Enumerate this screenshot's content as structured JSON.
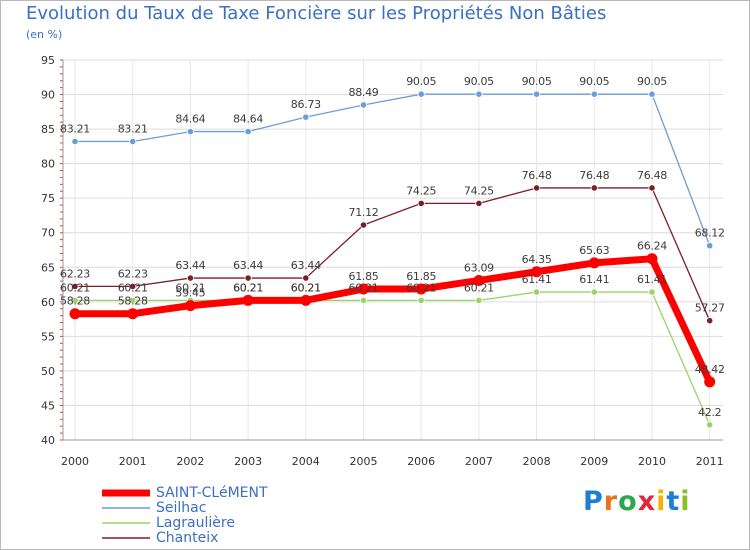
{
  "title": "Evolution du Taux de Taxe Foncière sur les Propriétés Non Bâties",
  "unit_label": "(en %)",
  "logo": {
    "text": "Proxiti",
    "letter_colors": [
      "#1e7fd1",
      "#e8731f",
      "#2ba84a",
      "#e0283a",
      "#f2b400",
      "#1e7fd1",
      "#8cbd2a"
    ]
  },
  "chart_data": {
    "type": "line",
    "title": "Evolution du Taux de Taxe Foncière sur les Propriétés Non Bâties",
    "ylabel": "(en %)",
    "xlabel": "",
    "ylim": [
      40,
      95
    ],
    "yticks": [
      40,
      45,
      50,
      55,
      60,
      65,
      70,
      75,
      80,
      85,
      90,
      95
    ],
    "grid": true,
    "x": [
      "2000",
      "2001",
      "2002",
      "2003",
      "2004",
      "2005",
      "2006",
      "2007",
      "2008",
      "2009",
      "2010",
      "2011"
    ],
    "series": [
      {
        "name": "SAINT-CLéMENT",
        "color": "#ff0000",
        "emphasis": true,
        "values": [
          58.28,
          58.28,
          59.45,
          60.21,
          60.21,
          61.85,
          61.85,
          63.09,
          64.35,
          65.63,
          66.24,
          48.42
        ],
        "labels": [
          "58.28",
          "58.28",
          "59.45",
          "60.21",
          "60.21",
          "61.85",
          "61.85",
          "63.09",
          "64.35",
          "65.63",
          "66.24",
          "48.42"
        ]
      },
      {
        "name": "Seilhac",
        "color": "#6a9fd8",
        "values": [
          83.21,
          83.21,
          84.64,
          84.64,
          86.73,
          88.49,
          90.05,
          90.05,
          90.05,
          90.05,
          90.05,
          68.12
        ],
        "labels": [
          "83.21",
          "83.21",
          "84.64",
          "84.64",
          "86.73",
          "88.49",
          "90.05",
          "90.05",
          "90.05",
          "90.05",
          "90.05",
          "68.12"
        ]
      },
      {
        "name": "Lagraulière",
        "color": "#98d46a",
        "values": [
          60.21,
          60.21,
          60.21,
          60.21,
          60.21,
          60.21,
          60.21,
          60.21,
          61.41,
          61.41,
          61.41,
          42.2
        ],
        "labels": [
          "60.21",
          "60.21",
          "60.21",
          "60.21",
          "60.21",
          "60.21",
          "60.21",
          "60.21",
          "61.41",
          "61.41",
          "61.41",
          "42.2"
        ]
      },
      {
        "name": "Chanteix",
        "color": "#7a1f2a",
        "values": [
          62.23,
          62.23,
          63.44,
          63.44,
          63.44,
          71.12,
          74.25,
          74.25,
          76.48,
          76.48,
          76.48,
          57.27
        ],
        "labels": [
          "62.23",
          "62.23",
          "63.44",
          "63.44",
          "63.44",
          "71.12",
          "74.25",
          "74.25",
          "76.48",
          "76.48",
          "76.48",
          "57.27"
        ]
      }
    ]
  }
}
